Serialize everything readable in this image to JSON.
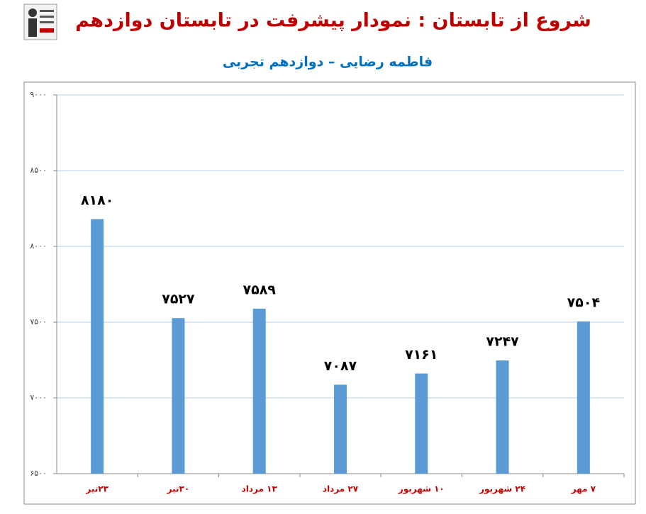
{
  "chart_data": {
    "type": "bar",
    "title": "شروع از تابستان : نمودار پیشرفت در تابستان دوازدهم",
    "subtitle": "فاطمه رضایی – دوازدهم تجربی",
    "categories": [
      "۲۳تیر",
      "۳۰تیر",
      "۱۳ مرداد",
      "۲۷ مرداد",
      "۱۰ شهریور",
      "۲۴ شهریور",
      "۷ مهر"
    ],
    "values": [
      8180,
      7527,
      7589,
      7087,
      7161,
      7247,
      7504
    ],
    "value_labels": [
      "۸۱۸۰",
      "۷۵۲۷",
      "۷۵۸۹",
      "۷۰۸۷",
      "۷۱۶۱",
      "۷۲۴۷",
      "۷۵۰۴"
    ],
    "color": "#5b9bd5",
    "ylim": [
      6500,
      9000
    ],
    "yticks": [
      {
        "value": 6500,
        "label": "۶۵۰۰"
      },
      {
        "value": 7000,
        "label": "۷۰۰۰"
      },
      {
        "value": 7500,
        "label": "۷۵۰۰"
      },
      {
        "value": 8000,
        "label": "۸۰۰۰"
      },
      {
        "value": 8500,
        "label": "۸۵۰۰"
      },
      {
        "value": 9000,
        "label": "۹۰۰۰"
      }
    ],
    "grid": true
  }
}
